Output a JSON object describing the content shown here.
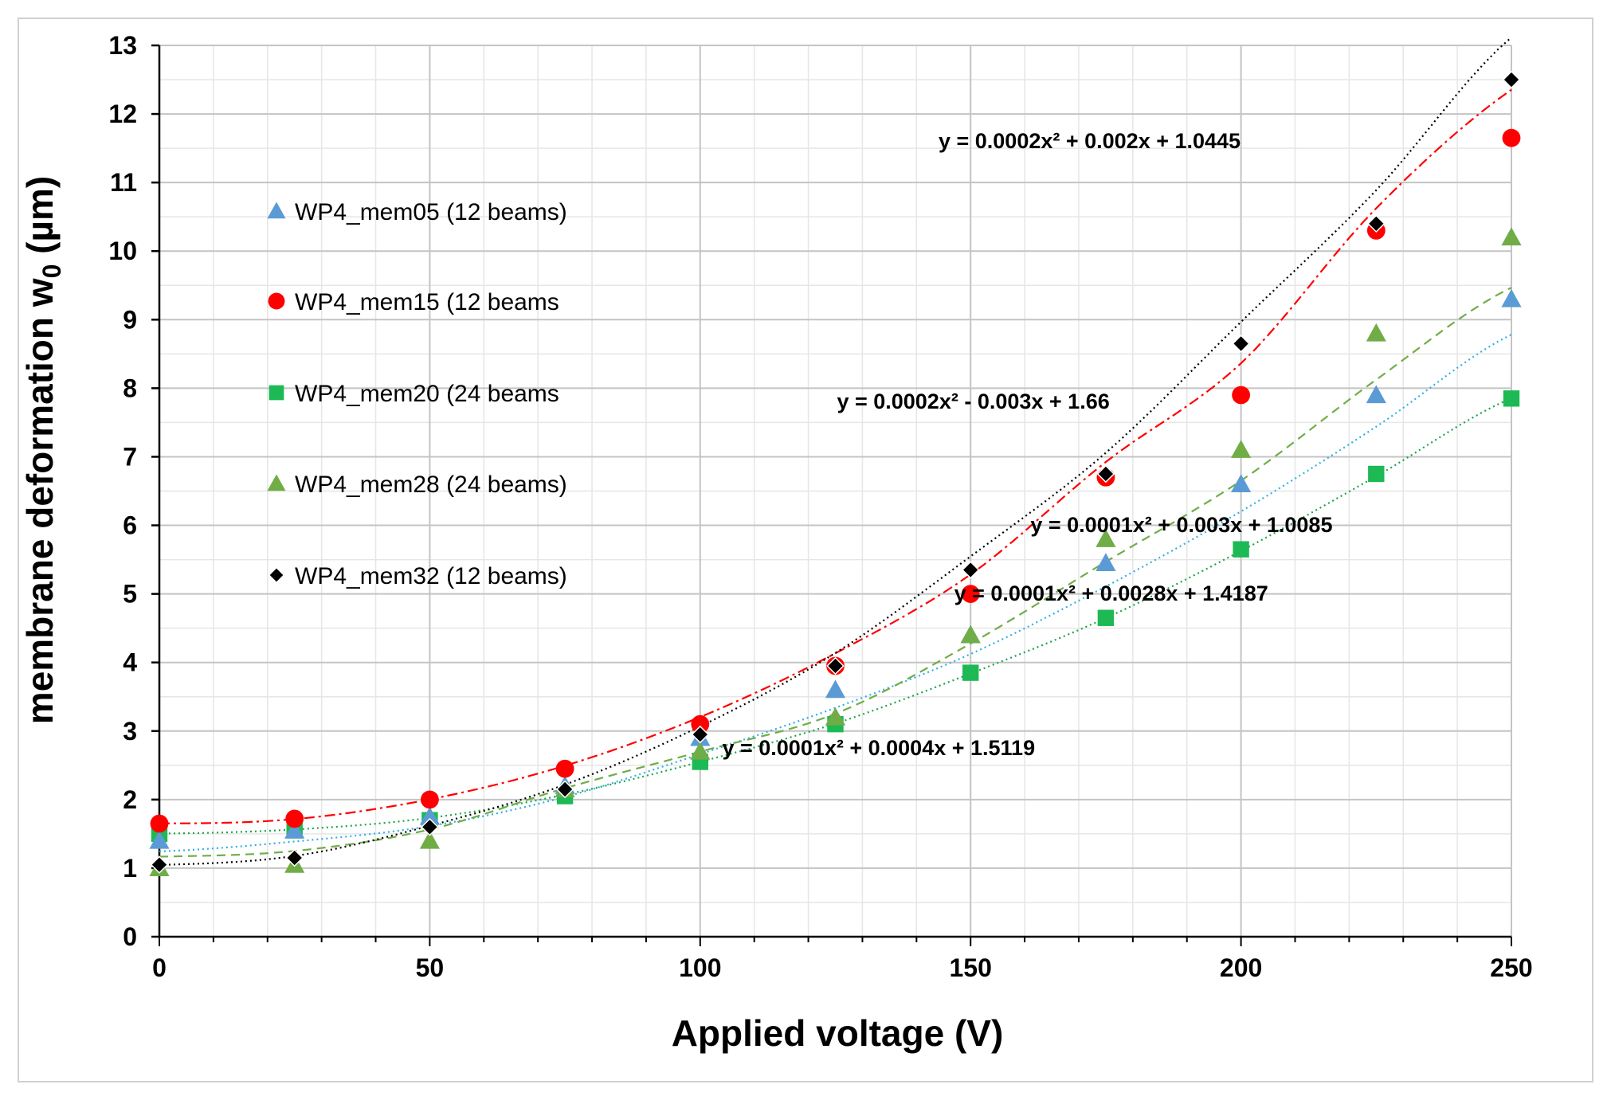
{
  "chart_data": {
    "type": "scatter",
    "title": "",
    "xlabel": "Applied  voltage (V)",
    "ylabel_main": "membrane deformation  w",
    "ylabel_sub": "0",
    "ylabel_unit": " (µm)",
    "xlim": [
      0,
      250
    ],
    "ylim": [
      0,
      13
    ],
    "x_ticks": [
      0,
      50,
      100,
      150,
      200,
      250
    ],
    "y_ticks": [
      0,
      1,
      2,
      3,
      4,
      5,
      6,
      7,
      8,
      9,
      10,
      11,
      12,
      13
    ],
    "x": [
      0,
      25,
      50,
      75,
      100,
      125,
      150,
      175,
      200,
      225,
      250
    ],
    "legend_position": "left",
    "series": [
      {
        "name": "WP4_mem05 (12 beams)",
        "marker": "triangle",
        "color": "#5b9bd5",
        "line_color": "#2eb0e8",
        "line_style": "dotted",
        "values": [
          1.4,
          1.55,
          1.75,
          2.2,
          2.9,
          3.6,
          4.4,
          5.45,
          6.6,
          7.9,
          9.3
        ],
        "fit": [
          0.0001,
          0.003,
          1.0085
        ]
      },
      {
        "name": "WP4_mem15 (12 beams",
        "marker": "circle",
        "color": "#ff0000",
        "line_color": "#ff0000",
        "line_style": "dashdot",
        "values": [
          1.65,
          1.72,
          2.0,
          2.45,
          3.1,
          3.95,
          5.0,
          6.7,
          7.9,
          10.3,
          11.65
        ],
        "fit": [
          0.0002,
          -0.003,
          1.66
        ]
      },
      {
        "name": "WP4_mem20 (24 beams",
        "marker": "square",
        "color": "#1db954",
        "line_color": "#1aa64b",
        "line_style": "dotted",
        "values": [
          1.5,
          1.55,
          1.7,
          2.05,
          2.55,
          3.1,
          3.85,
          4.65,
          5.65,
          6.75,
          7.85
        ],
        "fit": [
          0.0001,
          0.0004,
          1.5119
        ]
      },
      {
        "name": "WP4_mem28 (24 beams)",
        "marker": "triangle",
        "color": "#70ad47",
        "line_color": "#70ad47",
        "line_style": "dashed",
        "values": [
          1.0,
          1.05,
          1.4,
          2.15,
          2.7,
          3.2,
          4.4,
          5.8,
          7.1,
          8.8,
          10.2
        ],
        "fit": [
          0.0001,
          0.0028,
          1.4187
        ]
      },
      {
        "name": "WP4_mem32 (12 beams)",
        "marker": "diamond",
        "color": "#000000",
        "line_color": "#000000",
        "line_style": "dotted",
        "values": [
          1.05,
          1.15,
          1.6,
          2.15,
          2.95,
          3.95,
          5.35,
          6.75,
          8.65,
          10.4,
          12.5
        ],
        "fit": [
          0.0002,
          0.002,
          1.0445
        ]
      }
    ],
    "annotations": [
      {
        "text": "y = 0.0002x² + 0.002x + 1.0445",
        "for": "WP4_mem32",
        "x": 172,
        "y": 11.5
      },
      {
        "text": "y = 0.0002x² - 0.003x + 1.66",
        "for": "WP4_mem15",
        "x": 150.5,
        "y": 7.7
      },
      {
        "text": "y = 0.0001x² + 0.003x + 1.0085",
        "for": "WP4_mem05",
        "x": 189,
        "y": 5.9
      },
      {
        "text": "y = 0.0001x² + 0.0028x + 1.4187",
        "for": "WP4_mem28",
        "x": 176,
        "y": 4.9
      },
      {
        "text": "y = 0.0001x² + 0.0004x + 1.5119",
        "for": "WP4_mem20",
        "x": 133,
        "y": 2.65
      }
    ]
  }
}
